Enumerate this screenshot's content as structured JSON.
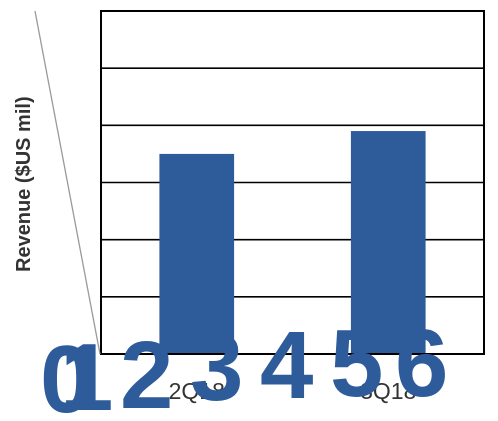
{
  "chart_data": {
    "type": "bar",
    "title": "",
    "xlabel": "",
    "ylabel": "Revenue ($US mil)",
    "categories": [
      "2Q18",
      "3Q18"
    ],
    "values": [
      3.5,
      3.9
    ],
    "ylim": [
      0,
      6
    ],
    "y_gridlines": [
      1,
      2,
      3,
      4,
      5,
      6
    ],
    "grid": true,
    "legend": "none",
    "bar_color": "#2e5c9a"
  },
  "overlay_glyphs": [
    "0",
    "1",
    "2",
    "3",
    "4",
    "5",
    "6"
  ],
  "colors": {
    "bar": "#2e5c9a",
    "frame": "#000000",
    "text": "#333333"
  }
}
